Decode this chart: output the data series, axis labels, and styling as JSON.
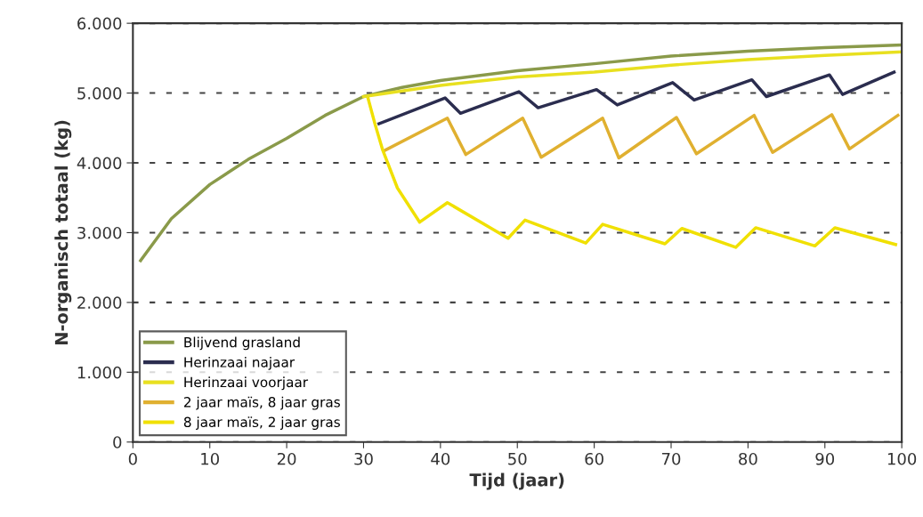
{
  "chart_data": {
    "type": "line",
    "xlabel": "Tijd (jaar)",
    "ylabel": "N-organisch totaal (kg)",
    "xlim": [
      0,
      100
    ],
    "ylim": [
      0,
      6000
    ],
    "xticks": [
      0,
      10,
      20,
      30,
      40,
      50,
      60,
      70,
      80,
      90,
      100
    ],
    "yticks": [
      {
        "value": 0,
        "label": "0"
      },
      {
        "value": 1000,
        "label": "1.000"
      },
      {
        "value": 2000,
        "label": "2.000"
      },
      {
        "value": 3000,
        "label": "3.000"
      },
      {
        "value": 4000,
        "label": "4.000"
      },
      {
        "value": 5000,
        "label": "5.000"
      },
      {
        "value": 6000,
        "label": "6.000"
      }
    ],
    "grid": "y",
    "legend": "bottom left",
    "marker": "none",
    "line_style": "solid",
    "series": [
      {
        "name": "Blijvend grasland",
        "color": "#8a9a4a",
        "x": [
          1,
          5,
          10,
          15,
          20,
          25,
          30,
          35,
          40,
          50,
          60,
          70,
          80,
          90,
          100
        ],
        "values": [
          2600,
          3200,
          3690,
          4050,
          4350,
          4680,
          4950,
          5080,
          5180,
          5320,
          5420,
          5530,
          5600,
          5650,
          5690
        ]
      },
      {
        "name": "Herinzaai najaar",
        "color": "#2b2d4f",
        "x": [
          32,
          40.6,
          42.6,
          50.2,
          52.7,
          60.3,
          63,
          70.2,
          73,
          80.5,
          82.4,
          90.6,
          92.3,
          99
        ],
        "values": [
          4560,
          4930,
          4710,
          5020,
          4790,
          5050,
          4830,
          5150,
          4900,
          5190,
          4950,
          5260,
          4980,
          5300
        ]
      },
      {
        "name": "Herinzaai voorjaar",
        "color": "#e8e020",
        "x": [
          30,
          35,
          40,
          50,
          60,
          70,
          80,
          90,
          100
        ],
        "values": [
          4950,
          5030,
          5110,
          5230,
          5300,
          5400,
          5480,
          5540,
          5590
        ]
      },
      {
        "name": "2 jaar maïs, 8 jaar gras",
        "color": "#e0b030",
        "x": [
          32.8,
          40.9,
          43.3,
          50.7,
          53.1,
          61.1,
          63.2,
          70.7,
          73.3,
          80.8,
          83.2,
          90.9,
          93.2,
          99.5
        ],
        "values": [
          4180,
          4640,
          4120,
          4640,
          4080,
          4640,
          4070,
          4650,
          4130,
          4680,
          4150,
          4690,
          4200,
          4680
        ]
      },
      {
        "name": "8 jaar maïs, 2 jaar gras",
        "color": "#f0e000",
        "x": [
          30.6,
          31.5,
          32.5,
          34.4,
          37.3,
          40.9,
          48.8,
          51,
          58.9,
          61.1,
          69.2,
          71.4,
          78.4,
          81,
          88.7,
          91.3,
          99.2
        ],
        "values": [
          4920,
          4550,
          4180,
          3640,
          3150,
          3430,
          2920,
          3180,
          2850,
          3120,
          2840,
          3060,
          2790,
          3070,
          2810,
          3070,
          2830
        ]
      }
    ]
  }
}
